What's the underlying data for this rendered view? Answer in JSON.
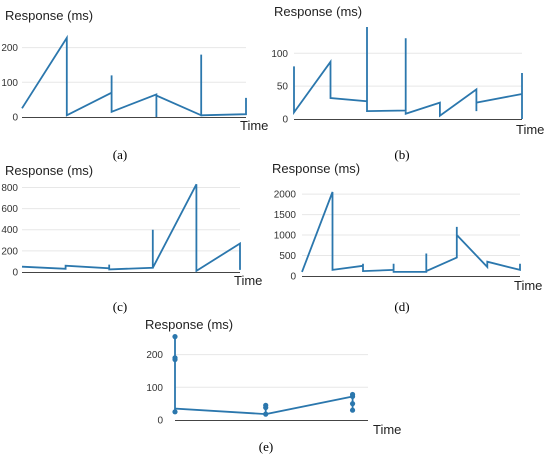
{
  "style": {
    "line_color": "#2b77ad",
    "grid_color": "#e7e7e7",
    "axis_color": "#444444"
  },
  "chart_data": [
    {
      "id": "a",
      "type": "line",
      "caption": "(a)",
      "ylabel": "Response (ms)",
      "xlabel": "Time",
      "yticks": [
        0,
        100,
        200
      ],
      "ylim": [
        0,
        245
      ],
      "xlim": [
        0,
        100
      ],
      "grid": true,
      "points": [
        [
          0,
          25
        ],
        [
          20,
          228
        ],
        [
          20,
          5
        ],
        [
          40,
          70
        ],
        [
          40,
          120
        ],
        [
          40,
          15
        ],
        [
          60,
          65
        ],
        [
          60,
          0
        ],
        [
          60,
          62
        ],
        [
          80,
          5
        ],
        [
          80,
          180
        ],
        [
          80,
          5
        ],
        [
          100,
          8
        ],
        [
          100,
          55
        ]
      ]
    },
    {
      "id": "b",
      "type": "line",
      "caption": "(b)",
      "ylabel": "Response (ms)",
      "xlabel": "Time",
      "yticks": [
        0,
        50,
        100
      ],
      "ylim": [
        0,
        140
      ],
      "xlim": [
        0,
        100
      ],
      "grid": true,
      "points": [
        [
          0,
          10
        ],
        [
          0,
          80
        ],
        [
          0,
          10
        ],
        [
          16,
          87
        ],
        [
          16,
          32
        ],
        [
          32,
          27
        ],
        [
          32,
          140
        ],
        [
          32,
          12
        ],
        [
          49,
          13
        ],
        [
          49,
          123
        ],
        [
          49,
          8
        ],
        [
          64,
          25
        ],
        [
          64,
          5
        ],
        [
          80,
          45
        ],
        [
          80,
          12
        ],
        [
          80,
          25
        ],
        [
          100,
          38
        ],
        [
          100,
          70
        ],
        [
          100,
          0
        ]
      ]
    },
    {
      "id": "c",
      "type": "line",
      "caption": "(c)",
      "ylabel": "Response (ms)",
      "xlabel": "Time",
      "yticks": [
        0,
        200,
        400,
        600,
        800
      ],
      "ylim": [
        0,
        880
      ],
      "xlim": [
        0,
        100
      ],
      "grid": true,
      "points": [
        [
          0,
          50
        ],
        [
          20,
          30
        ],
        [
          20,
          60
        ],
        [
          40,
          35
        ],
        [
          40,
          70
        ],
        [
          40,
          25
        ],
        [
          60,
          40
        ],
        [
          60,
          400
        ],
        [
          60,
          40
        ],
        [
          80,
          830
        ],
        [
          80,
          10
        ],
        [
          100,
          270
        ],
        [
          100,
          20
        ]
      ]
    },
    {
      "id": "d",
      "type": "line",
      "caption": "(d)",
      "ylabel": "Response (ms)",
      "xlabel": "Time",
      "yticks": [
        0,
        500,
        1000,
        1500,
        2000
      ],
      "ylim": [
        0,
        2100
      ],
      "xlim": [
        0,
        100
      ],
      "grid": true,
      "points": [
        [
          0,
          100
        ],
        [
          14,
          2050
        ],
        [
          14,
          150
        ],
        [
          28,
          250
        ],
        [
          28,
          300
        ],
        [
          28,
          120
        ],
        [
          42,
          150
        ],
        [
          42,
          300
        ],
        [
          42,
          100
        ],
        [
          57,
          100
        ],
        [
          57,
          550
        ],
        [
          57,
          120
        ],
        [
          71,
          450
        ],
        [
          71,
          1200
        ],
        [
          71,
          1000
        ],
        [
          85,
          220
        ],
        [
          85,
          350
        ],
        [
          100,
          150
        ],
        [
          100,
          300
        ]
      ]
    },
    {
      "id": "e",
      "type": "line",
      "caption": "(e)",
      "ylabel": "Response (ms)",
      "xlabel": "Time",
      "yticks": [
        0,
        100,
        200
      ],
      "ylim": [
        0,
        260
      ],
      "xlim": [
        0,
        100
      ],
      "grid": true,
      "points": [
        [
          0,
          255
        ],
        [
          0,
          190
        ],
        [
          0,
          185
        ],
        [
          0,
          25
        ],
        [
          0,
          35
        ],
        [
          47,
          18
        ],
        [
          47,
          45
        ],
        [
          47,
          38
        ],
        [
          47,
          18
        ],
        [
          92,
          72
        ],
        [
          92,
          78
        ],
        [
          92,
          50
        ],
        [
          92,
          30
        ],
        [
          92,
          72
        ]
      ],
      "markers": [
        [
          0,
          255
        ],
        [
          0,
          190
        ],
        [
          0,
          185
        ],
        [
          0,
          25
        ],
        [
          47,
          18
        ],
        [
          47,
          45
        ],
        [
          47,
          38
        ],
        [
          92,
          72
        ],
        [
          92,
          78
        ],
        [
          92,
          50
        ],
        [
          92,
          30
        ]
      ]
    }
  ]
}
